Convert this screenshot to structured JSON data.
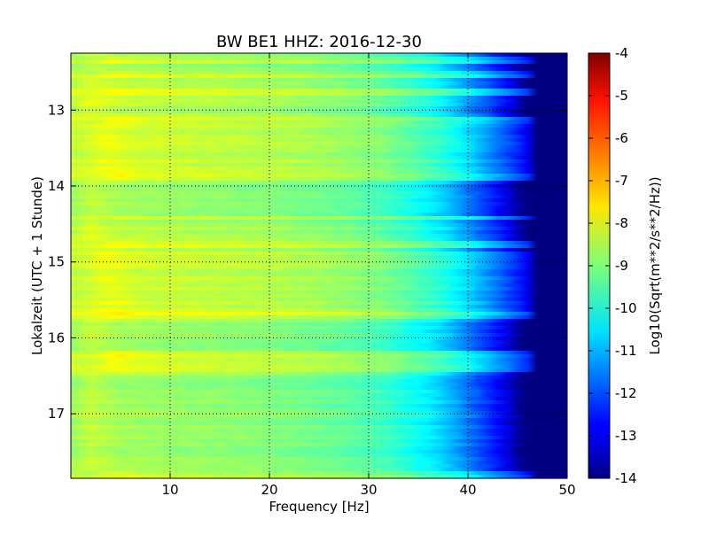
{
  "chart_data": {
    "type": "heatmap",
    "title": "BW BE1 HHZ: 2016-12-30",
    "xlabel": "Frequency [Hz]",
    "ylabel": "Lokalzeit (UTC + 1 Stunde)",
    "xlim": [
      0,
      50
    ],
    "ylim": [
      12.25,
      17.85
    ],
    "y_inverted": true,
    "grid": true,
    "x_ticks": [
      10,
      20,
      30,
      40,
      50
    ],
    "y_ticks": [
      13,
      14,
      15,
      16,
      17
    ],
    "colorbar": {
      "label": "Log10(Sqrt(m**2/s**2/Hz))",
      "range": [
        -14,
        -4
      ],
      "ticks": [
        -4,
        -5,
        -6,
        -7,
        -8,
        -9,
        -10,
        -11,
        -12,
        -13,
        -14
      ],
      "colormap": "jet"
    },
    "value_profile_by_frequency": {
      "frequency_hz": [
        0,
        2,
        5,
        10,
        15,
        20,
        25,
        30,
        33,
        36,
        38,
        40,
        42,
        44,
        45,
        46,
        50
      ],
      "log10_level": [
        -8.5,
        -8.1,
        -8.4,
        -8.5,
        -8.6,
        -8.7,
        -8.9,
        -9.2,
        -9.6,
        -10.1,
        -10.6,
        -11.3,
        -12.0,
        -12.8,
        -13.4,
        -14.0,
        -14.0
      ]
    },
    "quiet_intervals_hours": [
      {
        "start": 12.25,
        "end": 12.52
      },
      {
        "start": 13.88,
        "end": 14.52
      },
      {
        "start": 15.78,
        "end": 16.2
      },
      {
        "start": 16.52,
        "end": 17.85
      }
    ],
    "loud_intervals_hours": [
      {
        "start": 13.2,
        "end": 13.88
      },
      {
        "start": 14.85,
        "end": 15.7
      }
    ],
    "noisy_lines_hours": [
      12.35,
      12.52,
      12.75,
      13.15,
      13.88,
      14.42,
      14.78,
      15.7,
      16.22,
      16.3,
      16.42,
      17.8
    ]
  }
}
